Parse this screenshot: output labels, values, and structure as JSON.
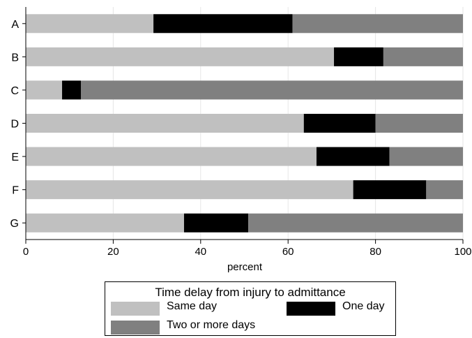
{
  "chart_data": {
    "type": "bar",
    "orientation": "horizontal",
    "stacked": true,
    "percent": true,
    "categories": [
      "A",
      "B",
      "C",
      "D",
      "E",
      "F",
      "G"
    ],
    "series": [
      {
        "name": "Same day",
        "color": "#c0c0c0",
        "values": [
          29.2,
          70.5,
          8.3,
          63.6,
          66.5,
          74.9,
          36.2
        ]
      },
      {
        "name": "One day",
        "color": "#000000",
        "values": [
          31.8,
          11.3,
          4.3,
          16.4,
          16.7,
          16.7,
          14.7
        ]
      },
      {
        "name": "Two or more days",
        "color": "#808080",
        "values": [
          39.0,
          18.2,
          87.4,
          20.0,
          16.8,
          8.4,
          49.1
        ]
      }
    ],
    "xlabel": "percent",
    "xlim": [
      0,
      100
    ],
    "xticks": [
      "0",
      "20",
      "40",
      "60",
      "80",
      "100"
    ],
    "grid": true,
    "legend": {
      "title": "Time delay from injury to admittance",
      "position": "bottom"
    }
  }
}
